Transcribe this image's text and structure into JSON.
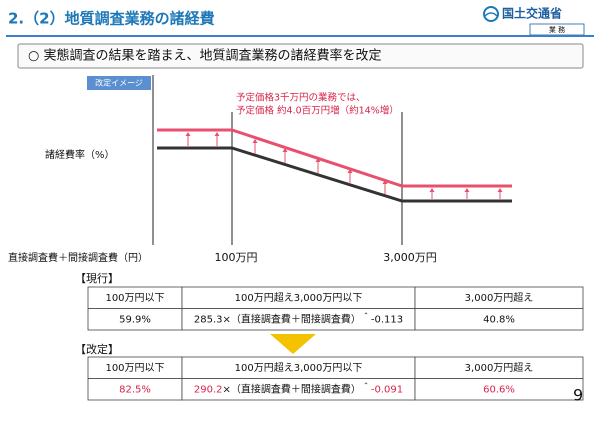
{
  "header": {
    "title": "2.（2）地質調査業務の諸経費",
    "organization": "国土交通省",
    "department": "業 務"
  },
  "summary": "○ 実態調査の結果を踏まえ、地質調査業務の諸経費率を改定",
  "diagram": {
    "badge": "改定イメージ",
    "y_label": "諸経費率（%）",
    "x_label": "直接調査費＋間接調査費（円）",
    "x_ticks": [
      "100万円",
      "3,000万円"
    ],
    "annotation": [
      "予定価格3千万円の業務では、",
      "予定価格 約4.0百万円増（約14%増）"
    ]
  },
  "tables": [
    {
      "title": "【現行】",
      "header": [
        "100万円以下",
        "100万円超え3,000万円以下",
        "3,000万円超え"
      ],
      "row": {
        "low": "59.9%",
        "coefficient": "285.3",
        "expression": "×（直接調査費＋間接調査費）＾",
        "exponent": "-0.113",
        "high": "40.8%"
      }
    },
    {
      "title": "【改定】",
      "header": [
        "100万円以下",
        "100万円超え3,000万円以下",
        "3,000万円超え"
      ],
      "row": {
        "low": "82.5%",
        "coefficient": "290.2",
        "expression": "×（直接調査費＋間接調査費）＾",
        "exponent": "-0.091",
        "high": "60.6%"
      }
    }
  ],
  "page_number": "9"
}
